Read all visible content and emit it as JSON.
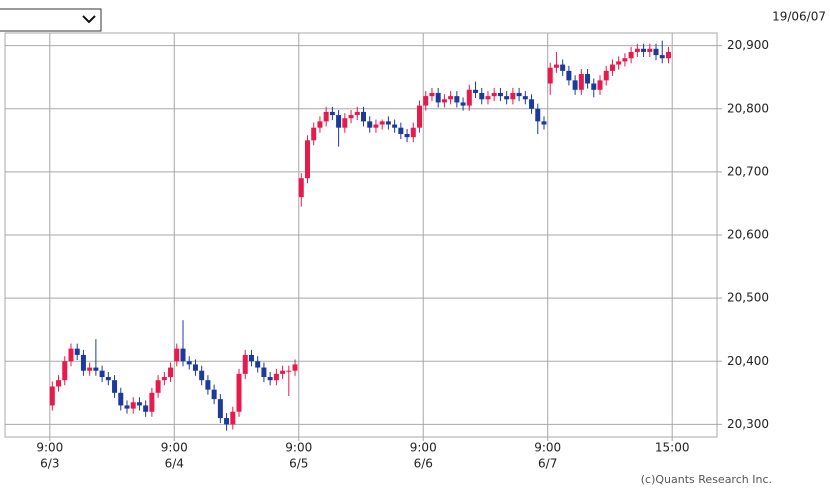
{
  "chart_data": {
    "type": "candlestick",
    "date": "19/06/07",
    "credit": "(c)Quants Research Inc.",
    "up_color": "#e8194b",
    "down_color": "#1c3a9c",
    "grid": true,
    "xlim": [
      -7.2,
      107.2
    ],
    "xticks": [
      {
        "value": 0,
        "label": "9:00"
      },
      {
        "value": 20,
        "label": "9:00"
      },
      {
        "value": 40,
        "label": "9:00"
      },
      {
        "value": 60,
        "label": "9:00"
      },
      {
        "value": 80,
        "label": "9:00"
      },
      {
        "value": 100,
        "label": "15:00"
      }
    ],
    "xtick_dates": [
      "6/3",
      "6/4",
      "6/5",
      "6/6",
      "6/7"
    ],
    "ylim": [
      20280,
      20920
    ],
    "yticks": [
      {
        "value": 20300,
        "label": "20,300"
      },
      {
        "value": 20400,
        "label": "20,400"
      },
      {
        "value": 20500,
        "label": "20,500"
      },
      {
        "value": 20600,
        "label": "20,600"
      },
      {
        "value": 20700,
        "label": "20,700"
      },
      {
        "value": 20800,
        "label": "20,800"
      },
      {
        "value": 20900,
        "label": "20,900"
      }
    ],
    "open": [
      20330,
      20360,
      20370,
      20400,
      20420,
      20410,
      20385,
      20390,
      20385,
      20375,
      20370,
      20350,
      20330,
      20325,
      20335,
      20330,
      20320,
      20350,
      20370,
      20375,
      20400,
      20420,
      20400,
      20395,
      20385,
      20370,
      20355,
      20340,
      20310,
      20300,
      20320,
      20380,
      20410,
      20400,
      20390,
      20375,
      20370,
      20380,
      20385,
      20385,
      20660,
      20690,
      20750,
      20770,
      20780,
      20795,
      20790,
      20770,
      20785,
      20790,
      20795,
      20780,
      20770,
      20775,
      20780,
      20775,
      20770,
      20760,
      20755,
      20770,
      20805,
      20820,
      20825,
      20810,
      20815,
      20820,
      20810,
      20805,
      20830,
      20825,
      20815,
      20820,
      20825,
      20820,
      20815,
      20825,
      20820,
      20815,
      20800,
      20780,
      20840,
      20865,
      20870,
      20860,
      20845,
      20830,
      20855,
      20840,
      20830,
      20845,
      20860,
      20870,
      20875,
      20880,
      20890,
      20895,
      20890,
      20895,
      20885,
      20880
    ],
    "high": [
      20368,
      20378,
      20408,
      20428,
      20428,
      20418,
      20398,
      20435,
      20393,
      20383,
      20378,
      20358,
      20338,
      20343,
      20343,
      20338,
      20358,
      20378,
      20383,
      20398,
      20428,
      20465,
      20408,
      20403,
      20393,
      20378,
      20363,
      20348,
      20318,
      20328,
      20388,
      20418,
      20418,
      20408,
      20398,
      20383,
      20388,
      20393,
      20393,
      20403,
      20698,
      20758,
      20778,
      20788,
      20803,
      20803,
      20798,
      20793,
      20798,
      20803,
      20803,
      20788,
      20783,
      20783,
      20788,
      20783,
      20778,
      20768,
      20778,
      20813,
      20828,
      20833,
      20833,
      20823,
      20828,
      20828,
      20818,
      20838,
      20843,
      20833,
      20828,
      20833,
      20833,
      20828,
      20833,
      20833,
      20828,
      20823,
      20808,
      20788,
      20873,
      20890,
      20878,
      20868,
      20853,
      20863,
      20863,
      20848,
      20853,
      20868,
      20878,
      20883,
      20888,
      20898,
      20903,
      20903,
      20903,
      20903,
      20908,
      20898
    ],
    "low": [
      20322,
      20352,
      20362,
      20392,
      20402,
      20377,
      20377,
      20377,
      20367,
      20362,
      20342,
      20322,
      20317,
      20317,
      20322,
      20312,
      20312,
      20342,
      20362,
      20367,
      20392,
      20392,
      20387,
      20377,
      20362,
      20347,
      20332,
      20302,
      20290,
      20292,
      20312,
      20372,
      20392,
      20382,
      20367,
      20362,
      20362,
      20372,
      20345,
      20377,
      20645,
      20682,
      20742,
      20762,
      20772,
      20782,
      20740,
      20762,
      20777,
      20782,
      20772,
      20762,
      20762,
      20767,
      20767,
      20762,
      20752,
      20747,
      20747,
      20762,
      20797,
      20812,
      20802,
      20802,
      20807,
      20802,
      20797,
      20797,
      20817,
      20807,
      20807,
      20812,
      20812,
      20807,
      20807,
      20812,
      20807,
      20792,
      20760,
      20767,
      20822,
      20857,
      20852,
      20837,
      20822,
      20822,
      20832,
      20818,
      20822,
      20837,
      20852,
      20862,
      20867,
      20872,
      20882,
      20882,
      20882,
      20877,
      20872,
      20872
    ],
    "close": [
      20360,
      20370,
      20400,
      20420,
      20410,
      20385,
      20390,
      20385,
      20375,
      20370,
      20350,
      20330,
      20325,
      20335,
      20330,
      20320,
      20350,
      20370,
      20375,
      20390,
      20420,
      20400,
      20395,
      20385,
      20370,
      20355,
      20340,
      20310,
      20300,
      20320,
      20380,
      20410,
      20400,
      20390,
      20375,
      20370,
      20380,
      20385,
      20385,
      20395,
      20690,
      20750,
      20770,
      20780,
      20795,
      20790,
      20770,
      20785,
      20790,
      20795,
      20780,
      20770,
      20775,
      20780,
      20775,
      20770,
      20760,
      20755,
      20770,
      20805,
      20820,
      20825,
      20810,
      20815,
      20820,
      20810,
      20805,
      20830,
      20825,
      20815,
      20820,
      20825,
      20820,
      20815,
      20825,
      20820,
      20815,
      20800,
      20780,
      20775,
      20865,
      20870,
      20860,
      20845,
      20830,
      20855,
      20840,
      20830,
      20845,
      20860,
      20870,
      20875,
      20880,
      20890,
      20895,
      20890,
      20895,
      20885,
      20880,
      20890
    ]
  }
}
